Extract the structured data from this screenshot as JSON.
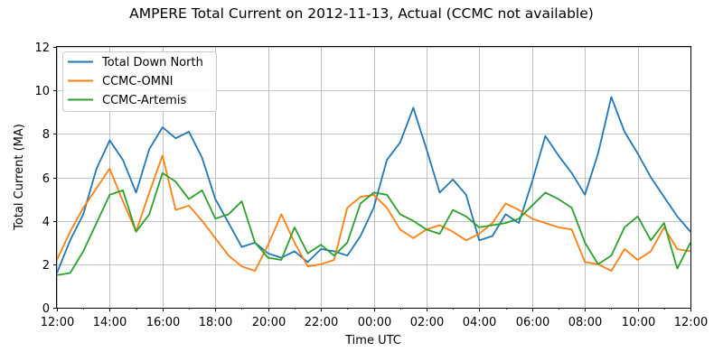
{
  "chart_data": {
    "type": "line",
    "title": "AMPERE Total Current on 2012-11-13, Actual (CCMC not available)",
    "xlabel": "Time UTC",
    "ylabel": "Total Current (MA)",
    "xlim": [
      0,
      24
    ],
    "ylim": [
      0,
      12
    ],
    "x_unit": "hours since 2012-11-13 12:00 UTC",
    "xticks": [
      0,
      2,
      4,
      6,
      8,
      10,
      12,
      14,
      16,
      18,
      20,
      22,
      24
    ],
    "xtick_labels": [
      "12:00",
      "14:00",
      "16:00",
      "18:00",
      "20:00",
      "22:00",
      "00:00",
      "02:00",
      "04:00",
      "06:00",
      "08:00",
      "10:00",
      "12:00"
    ],
    "yticks": [
      0,
      2,
      4,
      6,
      8,
      10,
      12
    ],
    "ytick_labels": [
      "0",
      "2",
      "4",
      "6",
      "8",
      "10",
      "12"
    ],
    "grid": true,
    "legend_position": "top-left",
    "x": [
      0.0,
      0.5,
      1.0,
      1.5,
      2.0,
      2.5,
      3.0,
      3.5,
      4.0,
      4.5,
      5.0,
      5.5,
      6.0,
      6.5,
      7.0,
      7.5,
      8.0,
      8.5,
      9.0,
      9.5,
      10.0,
      10.5,
      11.0,
      11.5,
      12.0,
      12.5,
      13.0,
      13.5,
      14.0,
      14.5,
      15.0,
      15.5,
      16.0,
      16.5,
      17.0,
      17.5,
      18.0,
      18.5,
      19.0,
      19.5,
      20.0,
      20.5,
      21.0,
      21.5,
      22.0,
      22.5,
      23.0,
      23.5,
      24.0
    ],
    "series": [
      {
        "name": "Total Down North",
        "color": "#1f77b4",
        "values": [
          1.6,
          3.1,
          4.3,
          6.4,
          7.7,
          6.8,
          5.3,
          7.3,
          8.3,
          7.8,
          8.1,
          6.9,
          5.0,
          3.9,
          2.8,
          3.0,
          2.5,
          2.3,
          2.6,
          2.1,
          2.7,
          2.6,
          2.4,
          3.3,
          4.6,
          6.8,
          7.6,
          9.2,
          7.3,
          5.3,
          5.9,
          5.2,
          3.1,
          3.3,
          4.3,
          3.9,
          5.8,
          7.9,
          7.0,
          6.2,
          5.2,
          7.1,
          9.7,
          8.1,
          7.1,
          6.0,
          5.1,
          4.2,
          3.5
        ]
      },
      {
        "name": "CCMC-OMNI",
        "color": "#ff7f0e",
        "values": [
          2.2,
          3.5,
          4.6,
          5.5,
          6.4,
          4.9,
          3.5,
          5.3,
          7.0,
          4.5,
          4.7,
          4.0,
          3.2,
          2.4,
          1.9,
          1.7,
          2.9,
          4.3,
          3.0,
          1.9,
          2.0,
          2.2,
          4.6,
          5.1,
          5.2,
          4.6,
          3.6,
          3.2,
          3.6,
          3.8,
          3.5,
          3.1,
          3.4,
          3.9,
          4.8,
          4.5,
          4.1,
          3.9,
          3.7,
          3.6,
          2.1,
          2.0,
          1.7,
          2.7,
          2.2,
          2.6,
          3.7,
          2.7,
          2.6
        ]
      },
      {
        "name": "CCMC-Artemis",
        "color": "#2ca02c",
        "values": [
          1.5,
          1.6,
          2.6,
          3.9,
          5.2,
          5.4,
          3.5,
          4.3,
          6.2,
          5.8,
          5.0,
          5.4,
          4.1,
          4.3,
          4.9,
          3.0,
          2.3,
          2.2,
          3.7,
          2.5,
          2.9,
          2.4,
          3.0,
          4.8,
          5.3,
          5.2,
          4.3,
          4.0,
          3.6,
          3.4,
          4.5,
          4.2,
          3.7,
          3.8,
          3.9,
          4.1,
          4.7,
          5.3,
          5.0,
          4.6,
          3.0,
          2.0,
          2.4,
          3.7,
          4.2,
          3.1,
          3.9,
          1.8,
          3.0
        ]
      }
    ]
  }
}
